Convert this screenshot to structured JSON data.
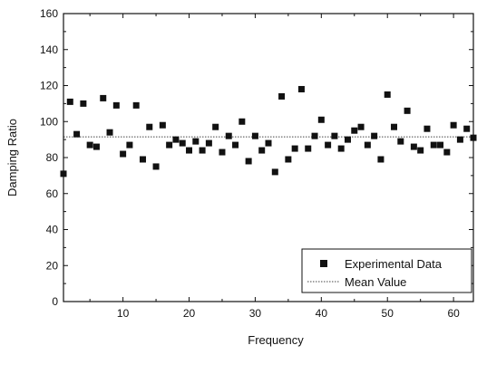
{
  "chart_data": {
    "type": "scatter",
    "title": "",
    "xlabel": "Frequency",
    "ylabel": "Damping Ratio",
    "xlim": [
      1,
      63
    ],
    "ylim": [
      0,
      160
    ],
    "x_ticks": [
      10,
      20,
      30,
      40,
      50,
      60
    ],
    "y_ticks": [
      0,
      20,
      40,
      60,
      80,
      100,
      120,
      140,
      160
    ],
    "grid": false,
    "legend_position": "bottom-right",
    "series": [
      {
        "name": "Experimental Data",
        "marker": "square",
        "color": "#111111",
        "x": [
          1,
          2,
          3,
          4,
          5,
          6,
          7,
          8,
          9,
          10,
          11,
          12,
          13,
          14,
          15,
          16,
          17,
          18,
          19,
          20,
          21,
          22,
          23,
          24,
          25,
          26,
          27,
          28,
          29,
          30,
          31,
          32,
          33,
          34,
          35,
          36,
          37,
          38,
          39,
          40,
          41,
          42,
          43,
          44,
          45,
          46,
          47,
          48,
          49,
          50,
          51,
          52,
          53,
          54,
          55,
          56,
          57,
          58,
          59,
          60,
          61,
          62,
          63
        ],
        "y": [
          71,
          111,
          93,
          110,
          87,
          86,
          113,
          94,
          109,
          82,
          87,
          109,
          79,
          97,
          75,
          98,
          87,
          90,
          88,
          84,
          89,
          84,
          88,
          97,
          83,
          92,
          87,
          100,
          78,
          92,
          84,
          88,
          72,
          114,
          79,
          85,
          118,
          85,
          92,
          101,
          87,
          92,
          85,
          90,
          95,
          97,
          87,
          92,
          79,
          115,
          97,
          89,
          106,
          86,
          84,
          96,
          87,
          87,
          83,
          98,
          90,
          96,
          91
        ]
      },
      {
        "name": "Mean Value",
        "style": "dotted-line",
        "color": "#444444",
        "x": [
          1,
          63
        ],
        "y": [
          91.5,
          91.5
        ]
      }
    ]
  }
}
